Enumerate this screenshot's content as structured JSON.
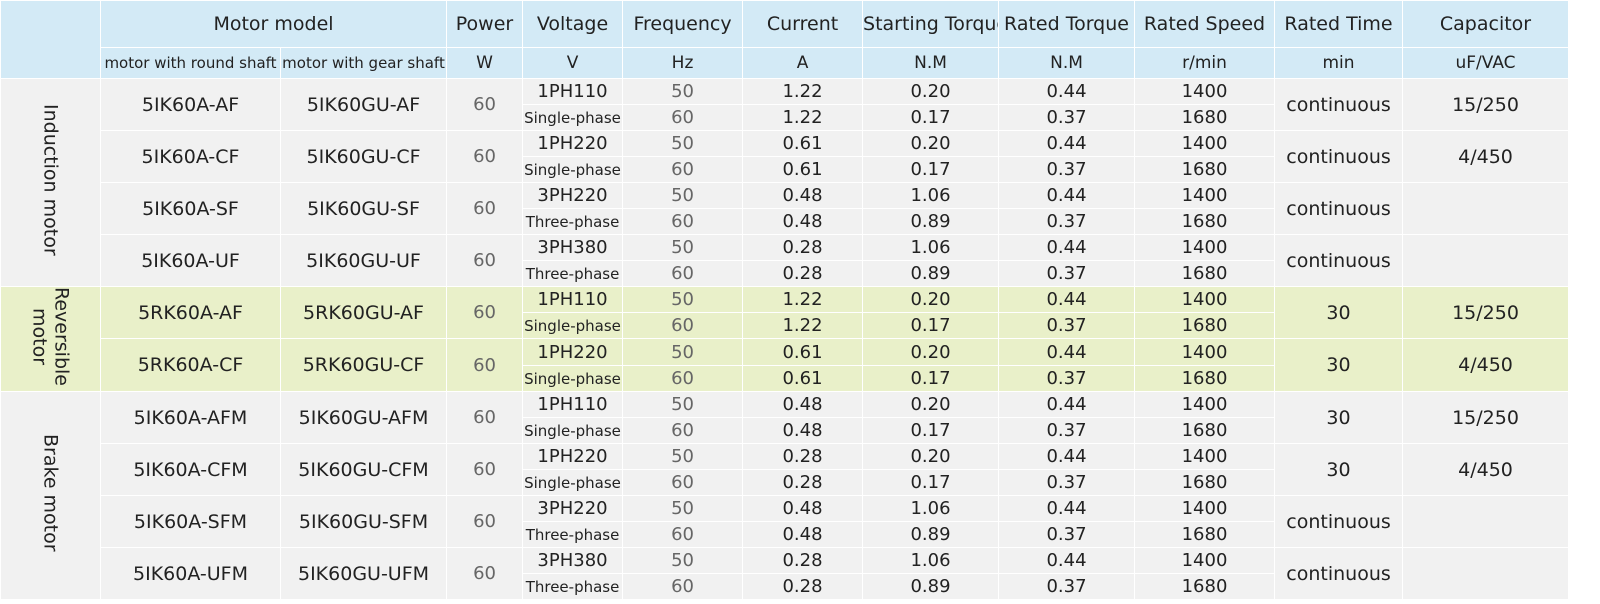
{
  "header": {
    "motor_model": "Motor model",
    "power": "Power",
    "voltage": "Voltage",
    "frequency": "Frequency",
    "current": "Current",
    "starting_torque": "Starting Torque",
    "rated_torque": "Rated Torque",
    "rated_speed": "Rated Speed",
    "rated_time": "Rated Time",
    "capacitor": "Capacitor"
  },
  "units": {
    "round_shaft": "motor with round shaft",
    "gear_shaft": "motor with gear shaft",
    "power": "W",
    "voltage": "V",
    "frequency": "Hz",
    "current": "A",
    "starting_torque": "N.M",
    "rated_torque": "N.M",
    "rated_speed": "r/min",
    "rated_time": "min",
    "capacitor": "uF/VAC"
  },
  "groups": [
    {
      "label": "Induction motor",
      "models": [
        {
          "round": "5IK60A-AF",
          "gear": "5IK60GU-AF",
          "power": "60",
          "voltage": "1PH110",
          "phase": "Single-phase",
          "rated_time": "continuous",
          "capacitor": "15/250",
          "rows": [
            {
              "freq": "50",
              "current": "1.22",
              "st": "0.20",
              "rt": "0.44",
              "rs": "1400"
            },
            {
              "freq": "60",
              "current": "1.22",
              "st": "0.17",
              "rt": "0.37",
              "rs": "1680"
            }
          ]
        },
        {
          "round": "5IK60A-CF",
          "gear": "5IK60GU-CF",
          "power": "60",
          "voltage": "1PH220",
          "phase": "Single-phase",
          "rated_time": "continuous",
          "capacitor": "4/450",
          "rows": [
            {
              "freq": "50",
              "current": "0.61",
              "st": "0.20",
              "rt": "0.44",
              "rs": "1400"
            },
            {
              "freq": "60",
              "current": "0.61",
              "st": "0.17",
              "rt": "0.37",
              "rs": "1680"
            }
          ]
        },
        {
          "round": "5IK60A-SF",
          "gear": "5IK60GU-SF",
          "power": "60",
          "voltage": "3PH220",
          "phase": "Three-phase",
          "rated_time": "continuous",
          "capacitor": "",
          "rows": [
            {
              "freq": "50",
              "current": "0.48",
              "st": "1.06",
              "rt": "0.44",
              "rs": "1400"
            },
            {
              "freq": "60",
              "current": "0.48",
              "st": "0.89",
              "rt": "0.37",
              "rs": "1680"
            }
          ]
        },
        {
          "round": "5IK60A-UF",
          "gear": "5IK60GU-UF",
          "power": "60",
          "voltage": "3PH380",
          "phase": "Three-phase",
          "rated_time": "continuous",
          "capacitor": "",
          "rows": [
            {
              "freq": "50",
              "current": "0.28",
              "st": "1.06",
              "rt": "0.44",
              "rs": "1400"
            },
            {
              "freq": "60",
              "current": "0.28",
              "st": "0.89",
              "rt": "0.37",
              "rs": "1680"
            }
          ]
        }
      ]
    },
    {
      "label": "Reversible motor",
      "models": [
        {
          "round": "5RK60A-AF",
          "gear": "5RK60GU-AF",
          "power": "60",
          "voltage": "1PH110",
          "phase": "Single-phase",
          "rated_time": "30",
          "capacitor": "15/250",
          "rows": [
            {
              "freq": "50",
              "current": "1.22",
              "st": "0.20",
              "rt": "0.44",
              "rs": "1400"
            },
            {
              "freq": "60",
              "current": "1.22",
              "st": "0.17",
              "rt": "0.37",
              "rs": "1680"
            }
          ]
        },
        {
          "round": "5RK60A-CF",
          "gear": "5RK60GU-CF",
          "power": "60",
          "voltage": "1PH220",
          "phase": "Single-phase",
          "rated_time": "30",
          "capacitor": "4/450",
          "rows": [
            {
              "freq": "50",
              "current": "0.61",
              "st": "0.20",
              "rt": "0.44",
              "rs": "1400"
            },
            {
              "freq": "60",
              "current": "0.61",
              "st": "0.17",
              "rt": "0.37",
              "rs": "1680"
            }
          ]
        }
      ]
    },
    {
      "label": "Brake motor",
      "models": [
        {
          "round": "5IK60A-AFM",
          "gear": "5IK60GU-AFM",
          "power": "60",
          "voltage": "1PH110",
          "phase": "Single-phase",
          "rated_time": "30",
          "capacitor": "15/250",
          "rows": [
            {
              "freq": "50",
              "current": "0.48",
              "st": "0.20",
              "rt": "0.44",
              "rs": "1400"
            },
            {
              "freq": "60",
              "current": "0.48",
              "st": "0.17",
              "rt": "0.37",
              "rs": "1680"
            }
          ]
        },
        {
          "round": "5IK60A-CFM",
          "gear": "5IK60GU-CFM",
          "power": "60",
          "voltage": "1PH220",
          "phase": "Single-phase",
          "rated_time": "30",
          "capacitor": "4/450",
          "rows": [
            {
              "freq": "50",
              "current": "0.28",
              "st": "0.20",
              "rt": "0.44",
              "rs": "1400"
            },
            {
              "freq": "60",
              "current": "0.28",
              "st": "0.17",
              "rt": "0.37",
              "rs": "1680"
            }
          ]
        },
        {
          "round": "5IK60A-SFM",
          "gear": "5IK60GU-SFM",
          "power": "60",
          "voltage": "3PH220",
          "phase": "Three-phase",
          "rated_time": "continuous",
          "capacitor": "",
          "rows": [
            {
              "freq": "50",
              "current": "0.48",
              "st": "1.06",
              "rt": "0.44",
              "rs": "1400"
            },
            {
              "freq": "60",
              "current": "0.48",
              "st": "0.89",
              "rt": "0.37",
              "rs": "1680"
            }
          ]
        },
        {
          "round": "5IK60A-UFM",
          "gear": "5IK60GU-UFM",
          "power": "60",
          "voltage": "3PH380",
          "phase": "Three-phase",
          "rated_time": "continuous",
          "capacitor": "",
          "rows": [
            {
              "freq": "50",
              "current": "0.28",
              "st": "1.06",
              "rt": "0.44",
              "rs": "1400"
            },
            {
              "freq": "60",
              "current": "0.28",
              "st": "0.89",
              "rt": "0.37",
              "rs": "1680"
            }
          ]
        }
      ]
    }
  ]
}
